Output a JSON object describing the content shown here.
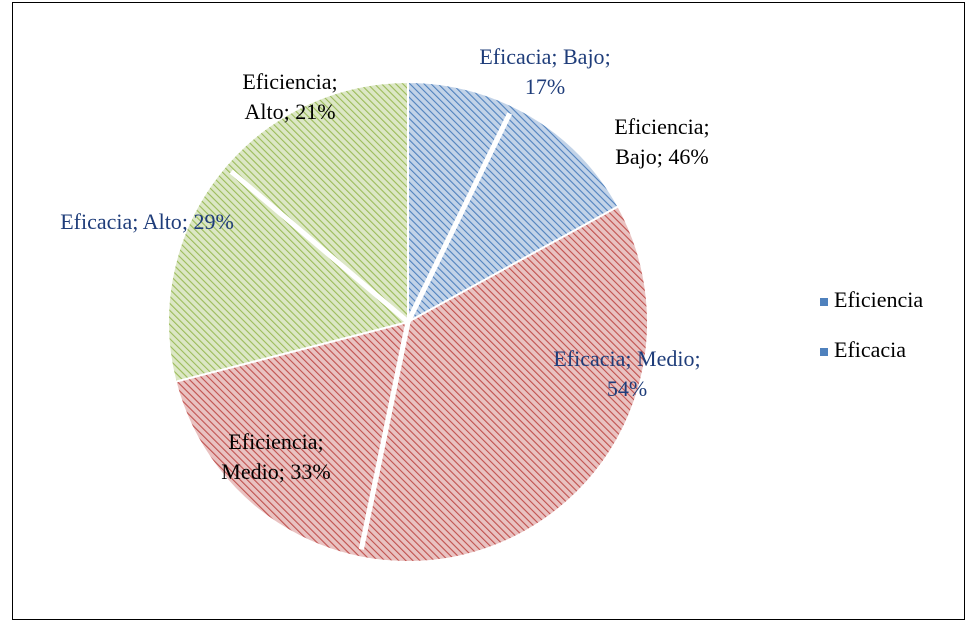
{
  "chart_data": {
    "type": "pie",
    "categories": [
      "Bajo",
      "Medio",
      "Alto"
    ],
    "colors": [
      "#4f81bd",
      "#c0504d",
      "#9bbb59"
    ],
    "label_separator": "; ",
    "series": [
      {
        "name": "Eficiencia",
        "values": [
          46,
          33,
          21
        ],
        "value_labels": [
          "46%",
          "33%",
          "21%"
        ],
        "label_color": "#000000"
      },
      {
        "name": "Eficacia",
        "values": [
          17,
          54,
          29
        ],
        "value_labels": [
          "17%",
          "54%",
          "29%"
        ],
        "label_color": "#1f3d7a"
      }
    ],
    "legend": "right"
  }
}
